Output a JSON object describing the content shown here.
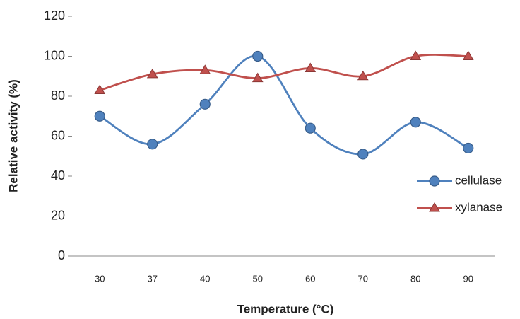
{
  "chart_data": {
    "type": "line",
    "x_label": "Temperature (°C)",
    "y_label": "Relative activity (%)",
    "categories": [
      "30",
      "37",
      "40",
      "50",
      "60",
      "70",
      "80",
      "90"
    ],
    "series": [
      {
        "name": "cellulase",
        "color": "#4f81bd",
        "marker": "circle",
        "values": [
          70,
          56,
          76,
          100,
          64,
          51,
          67,
          54
        ]
      },
      {
        "name": "xylanase",
        "color": "#c0504d",
        "marker": "triangle",
        "values": [
          83,
          91,
          93,
          89,
          94,
          90,
          100,
          100
        ]
      }
    ],
    "ylim": [
      0,
      120
    ],
    "yticks": [
      0,
      20,
      40,
      60,
      80,
      100,
      120
    ],
    "smooth": true,
    "grid": false,
    "legend": "right"
  }
}
